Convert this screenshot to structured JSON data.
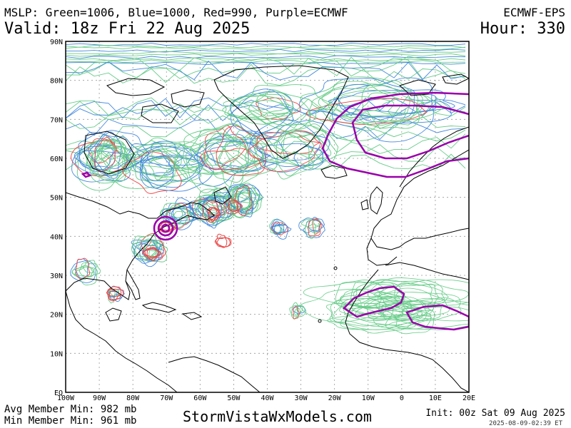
{
  "header": {
    "title": "MSLP: Green=1006, Blue=1000, Red=990, Purple=ECMWF",
    "model": "ECMWF-EPS",
    "valid": "Valid: 18z Fri 22 Aug 2025",
    "hour": "Hour: 330"
  },
  "footer": {
    "avg_min": "Avg Member Min: 982 mb",
    "min_min": "Min Member Min: 961 mb",
    "site": "StormVistaWxModels.com",
    "init": "Init: 00z Sat 09 Aug 2025",
    "stamp": "2025-08-09-02:39 ET"
  },
  "map": {
    "lat_labels": [
      "90N",
      "80N",
      "70N",
      "60N",
      "50N",
      "40N",
      "30N",
      "20N",
      "10N",
      "EQ"
    ],
    "lon_labels": [
      "100W",
      "90W",
      "80W",
      "70W",
      "60W",
      "50W",
      "40W",
      "30W",
      "20W",
      "10W",
      "0",
      "10E",
      "20E"
    ],
    "lat_range": [
      0,
      90
    ],
    "lon_range": [
      -100,
      20
    ],
    "contour_colors": {
      "1006": "#66cc88",
      "1000": "#4488dd",
      "990": "#ee4444",
      "ecmwf": "#9900aa",
      "coast": "#000000"
    }
  }
}
